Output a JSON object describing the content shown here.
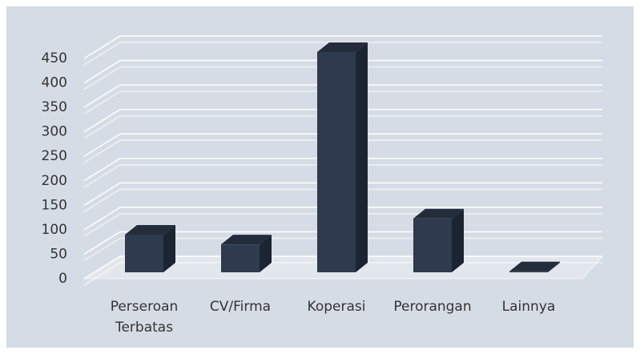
{
  "chart_data": {
    "type": "bar3d",
    "categories": [
      [
        "Perseroan",
        "Terbatas"
      ],
      "CV/Firma",
      "Koperasi",
      "Perorangan",
      "Lainnya"
    ],
    "values": [
      77,
      57,
      450,
      110,
      2
    ],
    "color": "#2e3a4d",
    "ylim": [
      0,
      450
    ],
    "yticks": [
      0,
      50,
      100,
      150,
      200,
      250,
      300,
      350,
      400,
      450
    ],
    "grid": true
  }
}
